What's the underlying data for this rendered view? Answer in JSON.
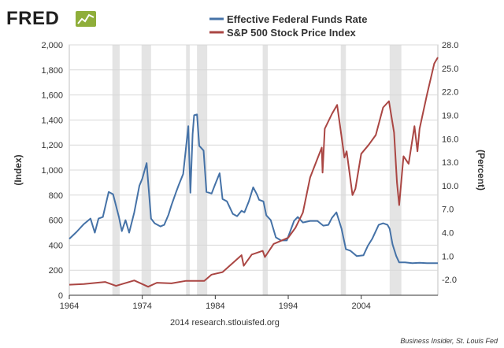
{
  "logo": {
    "text": "FRED"
  },
  "credit": "2014 research.stlouisfed.org",
  "source": "Business Insider, St. Louis Fed",
  "chart_data": {
    "type": "line",
    "title": "",
    "xlabel": "",
    "ylabel_left": "(Index)",
    "ylabel_right": "(Percent)",
    "xlim": [
      1964,
      2014.5
    ],
    "ylim_left": [
      0,
      2000
    ],
    "ylim_right": [
      -4,
      28
    ],
    "x_ticks": [
      "1964",
      "1974",
      "1984",
      "1994",
      "2004"
    ],
    "x_tick_values": [
      1964,
      1974,
      1984,
      1994,
      2004
    ],
    "y_left_ticks": [
      "0",
      "200",
      "400",
      "600",
      "800",
      "1,000",
      "1,200",
      "1,400",
      "1,600",
      "1,800",
      "2,000"
    ],
    "y_left_tick_values": [
      0,
      200,
      400,
      600,
      800,
      1000,
      1200,
      1400,
      1600,
      1800,
      2000
    ],
    "y_right_ticks": [
      "-2.0",
      "1.0",
      "4.0",
      "7.0",
      "10.0",
      "13.0",
      "16.0",
      "19.0",
      "22.0",
      "25.0",
      "28.0"
    ],
    "y_right_tick_values": [
      -2,
      1,
      4,
      7,
      10,
      13,
      16,
      19,
      22,
      25,
      28
    ],
    "grid": true,
    "legend_position": "top",
    "recessions": [
      [
        1969.9,
        1970.9
      ],
      [
        1973.9,
        1975.2
      ],
      [
        1980.0,
        1980.5
      ],
      [
        1981.5,
        1982.9
      ],
      [
        1990.5,
        1991.2
      ],
      [
        2001.2,
        2001.9
      ],
      [
        2007.9,
        2009.5
      ]
    ],
    "series": [
      {
        "name": "Effective Federal Funds Rate",
        "axis": "right",
        "color": "#4572a7",
        "x": [
          1964,
          1965,
          1966,
          1966.9,
          1967.5,
          1968,
          1968.6,
          1969.4,
          1970,
          1970.8,
          1971.2,
          1971.7,
          1972.2,
          1972.9,
          1973.6,
          1974,
          1974.6,
          1975.2,
          1975.7,
          1976.5,
          1977,
          1977.6,
          1978,
          1978.6,
          1979,
          1979.6,
          1980.3,
          1980.6,
          1980.9,
          1981.1,
          1981.5,
          1981.8,
          1982.4,
          1982.8,
          1983.5,
          1984,
          1984.6,
          1985,
          1985.6,
          1986.4,
          1987,
          1987.6,
          1988,
          1988.6,
          1989.2,
          1989.7,
          1990,
          1990.6,
          1991,
          1991.6,
          1992.3,
          1993,
          1993.8,
          1994.2,
          1994.8,
          1995.3,
          1996,
          1997,
          1998,
          1998.8,
          1999.5,
          2000,
          2000.6,
          2001.3,
          2001.9,
          2002.5,
          2003.4,
          2004.3,
          2004.9,
          2005.5,
          2006.4,
          2007,
          2007.6,
          2007.9,
          2008.3,
          2008.8,
          2009.2,
          2010,
          2011,
          2012,
          2013,
          2014,
          2014.5
        ],
        "y": [
          3.2,
          4.1,
          5.1,
          5.8,
          4.0,
          5.8,
          6.0,
          9.2,
          8.9,
          6.0,
          4.2,
          5.6,
          4.0,
          6.6,
          10.0,
          10.9,
          12.9,
          5.8,
          5.2,
          4.8,
          5.0,
          6.3,
          7.5,
          9.1,
          10.1,
          11.5,
          17.6,
          9.1,
          16.6,
          19.0,
          19.1,
          15.1,
          14.5,
          9.2,
          9.0,
          10.2,
          11.6,
          8.3,
          8.0,
          6.4,
          6.1,
          6.8,
          6.6,
          8.0,
          9.8,
          8.9,
          8.2,
          8.0,
          6.2,
          5.6,
          3.4,
          3.0,
          3.0,
          4.0,
          5.5,
          6.0,
          5.3,
          5.5,
          5.5,
          4.9,
          5.0,
          5.9,
          6.6,
          4.5,
          1.9,
          1.7,
          1.0,
          1.1,
          2.3,
          3.2,
          5.0,
          5.2,
          5.0,
          4.5,
          2.5,
          1.0,
          0.2,
          0.2,
          0.1,
          0.15,
          0.1,
          0.1,
          0.1
        ]
      },
      {
        "name": "S&P 500 Stock Price Index",
        "axis": "left",
        "color": "#aa4643",
        "x": [
          1964,
          1966,
          1968.9,
          1970.4,
          1972.9,
          1974.8,
          1976,
          1978,
          1980,
          1982.5,
          1983.5,
          1985,
          1987.6,
          1987.9,
          1989,
          1990.5,
          1990.8,
          1992,
          1994,
          1995,
          1996,
          1997,
          1998.6,
          1998.7,
          1999,
          2000,
          2000.7,
          2001.7,
          2002,
          2002.8,
          2003.2,
          2004,
          2005,
          2006,
          2007,
          2007.8,
          2008.5,
          2008.9,
          2009.2,
          2009.8,
          2010.5,
          2011.3,
          2011.7,
          2012,
          2013,
          2014,
          2014.5
        ],
        "y": [
          84,
          90,
          106,
          75,
          118,
          68,
          100,
          95,
          115,
          115,
          165,
          185,
          320,
          235,
          325,
          355,
          305,
          410,
          460,
          540,
          660,
          940,
          1180,
          980,
          1330,
          1450,
          1520,
          1100,
          1150,
          800,
          850,
          1130,
          1200,
          1280,
          1500,
          1550,
          1300,
          900,
          720,
          1110,
          1050,
          1350,
          1150,
          1330,
          1600,
          1850,
          1900
        ]
      }
    ]
  }
}
